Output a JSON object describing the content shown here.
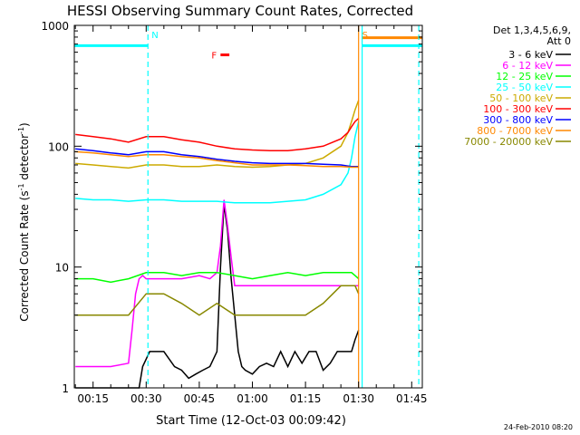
{
  "chart_data": {
    "type": "line",
    "title": "HESSI Observing Summary Count Rates, Corrected",
    "xlabel": "Start Time (12-Oct-03 00:09:42)",
    "ylabel_main": "Corrected Count Rate (s",
    "ylabel_sup1": "-1",
    "ylabel_mid": " detector",
    "ylabel_sup2": "-1",
    "ylabel_end": ")",
    "y_scale": "log",
    "ylim": [
      1,
      1000
    ],
    "xlim": [
      9.7,
      108
    ],
    "x_unit": "minutes after 00:00 UT",
    "x_ticks": [
      {
        "x": 15,
        "label": "00:15"
      },
      {
        "x": 30,
        "label": "00:30"
      },
      {
        "x": 45,
        "label": "00:45"
      },
      {
        "x": 60,
        "label": "01:00"
      },
      {
        "x": 75,
        "label": "01:15"
      },
      {
        "x": 90,
        "label": "01:30"
      },
      {
        "x": 105,
        "label": "01:45"
      }
    ],
    "y_ticks": [
      {
        "y": 1,
        "label": "1"
      },
      {
        "y": 10,
        "label": "10"
      },
      {
        "y": 100,
        "label": "100"
      },
      {
        "y": 1000,
        "label": "1000"
      }
    ],
    "legend_header": [
      "Det 1,3,4,5,6,9,",
      "Att 0"
    ],
    "legend_placement": "right",
    "series": [
      {
        "name": "3 - 6 keV",
        "color": "#000000",
        "x": [
          10,
          20,
          25,
          28,
          29,
          31,
          35,
          38,
          40,
          42,
          44,
          46,
          48,
          50,
          51,
          52,
          53,
          54,
          55,
          56,
          57,
          58,
          60,
          62,
          64,
          66,
          68,
          70,
          72,
          74,
          76,
          78,
          80,
          82,
          84,
          86,
          88,
          89,
          90
        ],
        "y": [
          1,
          1,
          1,
          1,
          1.5,
          2,
          2,
          1.5,
          1.4,
          1.2,
          1.3,
          1.4,
          1.5,
          2,
          10,
          33,
          20,
          8,
          4,
          2,
          1.5,
          1.4,
          1.3,
          1.5,
          1.6,
          1.5,
          2,
          1.5,
          2,
          1.6,
          2,
          2,
          1.4,
          1.6,
          2,
          2,
          2,
          2.5,
          3
        ]
      },
      {
        "name": "6 - 12 keV",
        "color": "#ff00ff",
        "x": [
          10,
          20,
          25,
          26,
          27,
          28,
          29,
          30,
          35,
          40,
          45,
          48,
          50,
          51,
          52,
          53,
          54,
          55,
          56,
          57,
          58,
          60,
          65,
          70,
          75,
          80,
          85,
          88,
          89,
          90
        ],
        "y": [
          1.5,
          1.5,
          1.6,
          3,
          6,
          8,
          8.5,
          8,
          8,
          8,
          8.5,
          8,
          9,
          15,
          36,
          22,
          12,
          7,
          7,
          7,
          7,
          7,
          7,
          7,
          7,
          7,
          7,
          7,
          7,
          7
        ]
      },
      {
        "name": "12 - 25 keV",
        "color": "#00ff00",
        "x": [
          10,
          15,
          20,
          25,
          30,
          35,
          40,
          45,
          50,
          55,
          60,
          65,
          70,
          75,
          80,
          85,
          88,
          89,
          90
        ],
        "y": [
          8,
          8,
          7.5,
          8,
          9,
          9,
          8.5,
          9,
          9,
          8.5,
          8,
          8.5,
          9,
          8.5,
          9,
          9,
          9,
          8.5,
          8
        ]
      },
      {
        "name": "25 - 50 keV",
        "color": "#00ffff",
        "x": [
          10,
          15,
          20,
          25,
          30,
          35,
          40,
          45,
          50,
          55,
          60,
          65,
          70,
          75,
          80,
          85,
          87,
          88,
          89,
          90
        ],
        "y": [
          37,
          36,
          36,
          35,
          36,
          36,
          35,
          35,
          35,
          34,
          34,
          34,
          35,
          36,
          40,
          48,
          60,
          80,
          120,
          160
        ]
      },
      {
        "name": "50 - 100 keV",
        "color": "#ccaa00",
        "x": [
          10,
          15,
          20,
          25,
          30,
          35,
          40,
          45,
          50,
          55,
          60,
          65,
          70,
          75,
          80,
          85,
          87,
          88,
          89,
          90
        ],
        "y": [
          72,
          70,
          68,
          66,
          70,
          70,
          68,
          68,
          70,
          68,
          67,
          68,
          70,
          72,
          80,
          100,
          130,
          160,
          200,
          240
        ]
      },
      {
        "name": "100 - 300 keV",
        "color": "#ff0000",
        "x": [
          10,
          15,
          20,
          25,
          30,
          35,
          40,
          45,
          50,
          55,
          60,
          65,
          70,
          75,
          80,
          85,
          87,
          88,
          89,
          90
        ],
        "y": [
          125,
          120,
          115,
          108,
          120,
          120,
          113,
          108,
          100,
          95,
          93,
          92,
          92,
          95,
          100,
          115,
          130,
          145,
          160,
          170
        ]
      },
      {
        "name": "300 - 800 keV",
        "color": "#0000ff",
        "x": [
          10,
          15,
          20,
          25,
          30,
          35,
          40,
          45,
          50,
          55,
          60,
          65,
          70,
          75,
          80,
          85,
          88,
          89,
          90
        ],
        "y": [
          95,
          92,
          88,
          85,
          90,
          90,
          85,
          82,
          78,
          75,
          73,
          72,
          72,
          72,
          71,
          70,
          68,
          68,
          68
        ]
      },
      {
        "name": "800 - 7000 keV",
        "color": "#ff8800",
        "x": [
          10,
          15,
          20,
          25,
          30,
          35,
          40,
          45,
          50,
          55,
          60,
          65,
          70,
          75,
          80,
          85,
          88,
          89,
          90
        ],
        "y": [
          90,
          88,
          85,
          82,
          85,
          85,
          82,
          80,
          76,
          73,
          70,
          70,
          70,
          69,
          68,
          68,
          67,
          67,
          67
        ]
      },
      {
        "name": "7000 - 20000 keV",
        "color": "#888800",
        "x": [
          10,
          15,
          20,
          25,
          30,
          35,
          40,
          45,
          50,
          55,
          60,
          65,
          70,
          75,
          80,
          85,
          88,
          89,
          90
        ],
        "y": [
          4,
          4,
          4,
          4,
          6,
          6,
          5,
          4,
          5,
          4,
          4,
          4,
          4,
          4,
          5,
          7,
          7,
          7,
          6
        ]
      }
    ],
    "attenuator_bars": [
      {
        "x0": 9.7,
        "x1": 30.5,
        "y": 680,
        "color": "#00ffff"
      },
      {
        "x0": 91,
        "x1": 108,
        "y": 680,
        "color": "#00ffff"
      },
      {
        "x0": 91,
        "x1": 108,
        "y": 790,
        "color": "#ff8800"
      }
    ],
    "flare_marker": {
      "x0": 51,
      "x1": 53.5,
      "y": 570,
      "color": "#ff0000"
    },
    "markers": [
      {
        "label": "N",
        "x": 30.5,
        "color": "#00ffff",
        "style": "dashed"
      },
      {
        "label": "S",
        "x": 90,
        "color": "#ff8800",
        "style": "solid"
      }
    ],
    "extra_lines": [
      {
        "x": 91,
        "color": "#00ffff",
        "style": "solid"
      },
      {
        "x": 107,
        "color": "#00ffff",
        "style": "dashed"
      }
    ],
    "flare_label": "F",
    "footer_date": "24-Feb-2010 08:20"
  }
}
